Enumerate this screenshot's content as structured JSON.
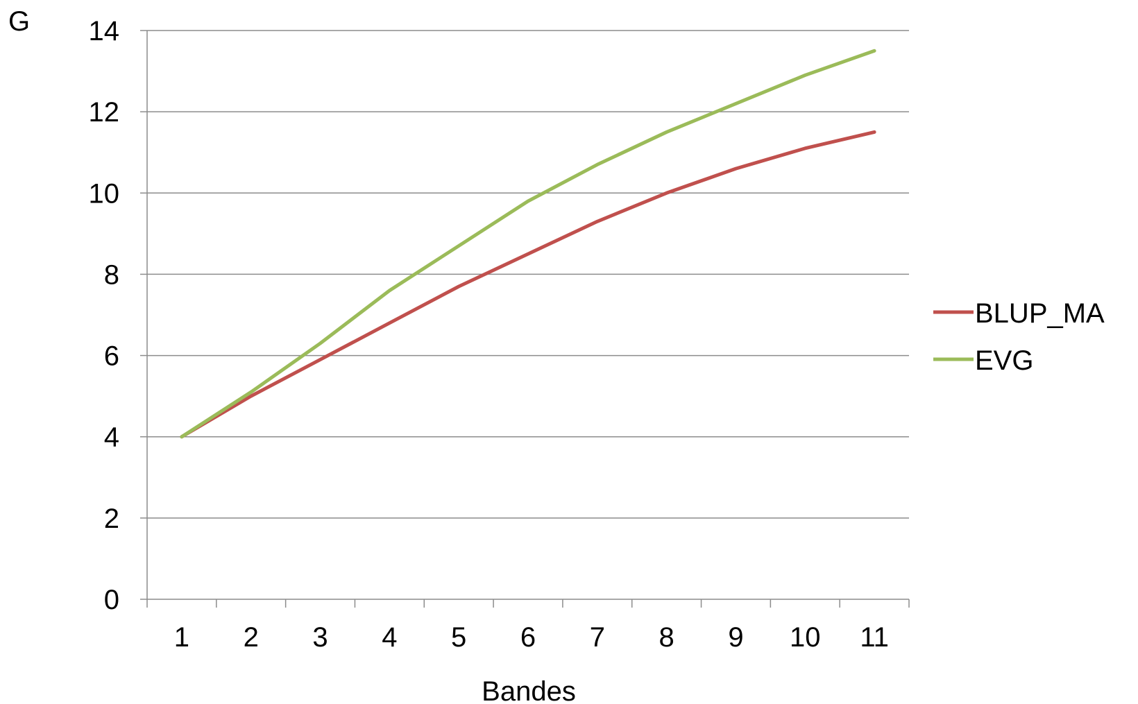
{
  "chart_data": {
    "type": "line",
    "title": "",
    "xlabel": "Bandes",
    "ylabel": "G",
    "categories": [
      "1",
      "2",
      "3",
      "4",
      "5",
      "6",
      "7",
      "8",
      "9",
      "10",
      "11"
    ],
    "ylim": [
      0,
      14
    ],
    "yticks": [
      "0",
      "2",
      "4",
      "6",
      "8",
      "10",
      "12",
      "14"
    ],
    "grid": "horizontal",
    "legend_position": "right",
    "series": [
      {
        "name": "BLUP_MA",
        "color": "#c0504d",
        "values": [
          4.0,
          5.0,
          5.9,
          6.8,
          7.7,
          8.5,
          9.3,
          10.0,
          10.6,
          11.1,
          11.5
        ]
      },
      {
        "name": "EVG",
        "color": "#9bbb59",
        "values": [
          4.0,
          5.1,
          6.3,
          7.6,
          8.7,
          9.8,
          10.7,
          11.5,
          12.2,
          12.9,
          13.5
        ]
      }
    ]
  }
}
